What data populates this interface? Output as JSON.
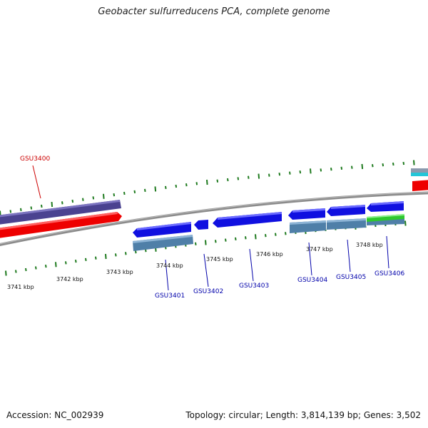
{
  "title": "Geobacter sulfurreducens PCA, complete genome",
  "footer": {
    "accession": "Accession: NC_002939",
    "summary": "Topology: circular; Length: 3,814,139 bp; Genes: 3,502"
  },
  "colors": {
    "genome_line": "#8c8c8c",
    "tick": "#1e7a1e",
    "label_red": "#cc0000",
    "label_blue": "#0000aa",
    "cds_blue": "#1010e0",
    "cds_steel": "#4f7fa8",
    "rna_red": "#ee0000",
    "gene_purple": "#4a4290",
    "green_feature": "#2ec82e",
    "cyan_feature": "#22c6d8"
  },
  "ticks": [
    {
      "label": "3741 kbp"
    },
    {
      "label": "3742 kbp"
    },
    {
      "label": "3743 kbp"
    },
    {
      "label": "3744 kbp"
    },
    {
      "label": "3745 kbp"
    },
    {
      "label": "3746 kbp"
    },
    {
      "label": "3747 kbp"
    },
    {
      "label": "3748 kbp"
    }
  ],
  "genes": [
    {
      "name": "GSU3400",
      "label_color": "red"
    },
    {
      "name": "GSU3401",
      "label_color": "blue"
    },
    {
      "name": "GSU3402",
      "label_color": "blue"
    },
    {
      "name": "GSU3403",
      "label_color": "blue"
    },
    {
      "name": "GSU3404",
      "label_color": "blue"
    },
    {
      "name": "GSU3405",
      "label_color": "blue"
    },
    {
      "name": "GSU3406",
      "label_color": "blue"
    }
  ]
}
